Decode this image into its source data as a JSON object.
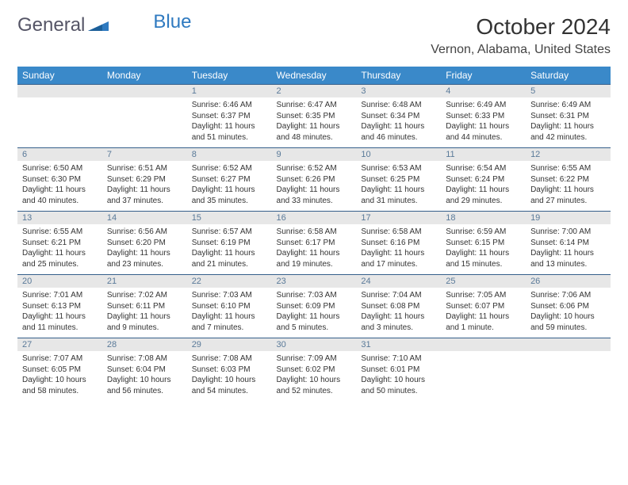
{
  "brand": {
    "part1": "General",
    "part2": "Blue"
  },
  "title": "October 2024",
  "location": "Vernon, Alabama, United States",
  "colors": {
    "header_bg": "#3a89c9",
    "header_fg": "#ffffff",
    "daynum_bg": "#e7e7e7",
    "daynum_fg": "#5a7a99",
    "rule": "#355f8a",
    "text": "#333333",
    "logo_blue": "#2f7ac0"
  },
  "weekdays": [
    "Sunday",
    "Monday",
    "Tuesday",
    "Wednesday",
    "Thursday",
    "Friday",
    "Saturday"
  ],
  "weeks": [
    [
      null,
      null,
      {
        "n": "1",
        "sr": "Sunrise: 6:46 AM",
        "ss": "Sunset: 6:37 PM",
        "dl": "Daylight: 11 hours and 51 minutes."
      },
      {
        "n": "2",
        "sr": "Sunrise: 6:47 AM",
        "ss": "Sunset: 6:35 PM",
        "dl": "Daylight: 11 hours and 48 minutes."
      },
      {
        "n": "3",
        "sr": "Sunrise: 6:48 AM",
        "ss": "Sunset: 6:34 PM",
        "dl": "Daylight: 11 hours and 46 minutes."
      },
      {
        "n": "4",
        "sr": "Sunrise: 6:49 AM",
        "ss": "Sunset: 6:33 PM",
        "dl": "Daylight: 11 hours and 44 minutes."
      },
      {
        "n": "5",
        "sr": "Sunrise: 6:49 AM",
        "ss": "Sunset: 6:31 PM",
        "dl": "Daylight: 11 hours and 42 minutes."
      }
    ],
    [
      {
        "n": "6",
        "sr": "Sunrise: 6:50 AM",
        "ss": "Sunset: 6:30 PM",
        "dl": "Daylight: 11 hours and 40 minutes."
      },
      {
        "n": "7",
        "sr": "Sunrise: 6:51 AM",
        "ss": "Sunset: 6:29 PM",
        "dl": "Daylight: 11 hours and 37 minutes."
      },
      {
        "n": "8",
        "sr": "Sunrise: 6:52 AM",
        "ss": "Sunset: 6:27 PM",
        "dl": "Daylight: 11 hours and 35 minutes."
      },
      {
        "n": "9",
        "sr": "Sunrise: 6:52 AM",
        "ss": "Sunset: 6:26 PM",
        "dl": "Daylight: 11 hours and 33 minutes."
      },
      {
        "n": "10",
        "sr": "Sunrise: 6:53 AM",
        "ss": "Sunset: 6:25 PM",
        "dl": "Daylight: 11 hours and 31 minutes."
      },
      {
        "n": "11",
        "sr": "Sunrise: 6:54 AM",
        "ss": "Sunset: 6:24 PM",
        "dl": "Daylight: 11 hours and 29 minutes."
      },
      {
        "n": "12",
        "sr": "Sunrise: 6:55 AM",
        "ss": "Sunset: 6:22 PM",
        "dl": "Daylight: 11 hours and 27 minutes."
      }
    ],
    [
      {
        "n": "13",
        "sr": "Sunrise: 6:55 AM",
        "ss": "Sunset: 6:21 PM",
        "dl": "Daylight: 11 hours and 25 minutes."
      },
      {
        "n": "14",
        "sr": "Sunrise: 6:56 AM",
        "ss": "Sunset: 6:20 PM",
        "dl": "Daylight: 11 hours and 23 minutes."
      },
      {
        "n": "15",
        "sr": "Sunrise: 6:57 AM",
        "ss": "Sunset: 6:19 PM",
        "dl": "Daylight: 11 hours and 21 minutes."
      },
      {
        "n": "16",
        "sr": "Sunrise: 6:58 AM",
        "ss": "Sunset: 6:17 PM",
        "dl": "Daylight: 11 hours and 19 minutes."
      },
      {
        "n": "17",
        "sr": "Sunrise: 6:58 AM",
        "ss": "Sunset: 6:16 PM",
        "dl": "Daylight: 11 hours and 17 minutes."
      },
      {
        "n": "18",
        "sr": "Sunrise: 6:59 AM",
        "ss": "Sunset: 6:15 PM",
        "dl": "Daylight: 11 hours and 15 minutes."
      },
      {
        "n": "19",
        "sr": "Sunrise: 7:00 AM",
        "ss": "Sunset: 6:14 PM",
        "dl": "Daylight: 11 hours and 13 minutes."
      }
    ],
    [
      {
        "n": "20",
        "sr": "Sunrise: 7:01 AM",
        "ss": "Sunset: 6:13 PM",
        "dl": "Daylight: 11 hours and 11 minutes."
      },
      {
        "n": "21",
        "sr": "Sunrise: 7:02 AM",
        "ss": "Sunset: 6:11 PM",
        "dl": "Daylight: 11 hours and 9 minutes."
      },
      {
        "n": "22",
        "sr": "Sunrise: 7:03 AM",
        "ss": "Sunset: 6:10 PM",
        "dl": "Daylight: 11 hours and 7 minutes."
      },
      {
        "n": "23",
        "sr": "Sunrise: 7:03 AM",
        "ss": "Sunset: 6:09 PM",
        "dl": "Daylight: 11 hours and 5 minutes."
      },
      {
        "n": "24",
        "sr": "Sunrise: 7:04 AM",
        "ss": "Sunset: 6:08 PM",
        "dl": "Daylight: 11 hours and 3 minutes."
      },
      {
        "n": "25",
        "sr": "Sunrise: 7:05 AM",
        "ss": "Sunset: 6:07 PM",
        "dl": "Daylight: 11 hours and 1 minute."
      },
      {
        "n": "26",
        "sr": "Sunrise: 7:06 AM",
        "ss": "Sunset: 6:06 PM",
        "dl": "Daylight: 10 hours and 59 minutes."
      }
    ],
    [
      {
        "n": "27",
        "sr": "Sunrise: 7:07 AM",
        "ss": "Sunset: 6:05 PM",
        "dl": "Daylight: 10 hours and 58 minutes."
      },
      {
        "n": "28",
        "sr": "Sunrise: 7:08 AM",
        "ss": "Sunset: 6:04 PM",
        "dl": "Daylight: 10 hours and 56 minutes."
      },
      {
        "n": "29",
        "sr": "Sunrise: 7:08 AM",
        "ss": "Sunset: 6:03 PM",
        "dl": "Daylight: 10 hours and 54 minutes."
      },
      {
        "n": "30",
        "sr": "Sunrise: 7:09 AM",
        "ss": "Sunset: 6:02 PM",
        "dl": "Daylight: 10 hours and 52 minutes."
      },
      {
        "n": "31",
        "sr": "Sunrise: 7:10 AM",
        "ss": "Sunset: 6:01 PM",
        "dl": "Daylight: 10 hours and 50 minutes."
      },
      null,
      null
    ]
  ]
}
